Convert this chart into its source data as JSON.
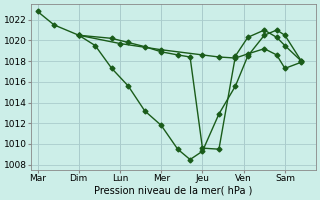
{
  "xlabel": "Pression niveau de la mer( hPa )",
  "background_color": "#cceee8",
  "grid_color": "#aacccc",
  "line_color": "#1a5c1a",
  "marker_color": "#1a5c1a",
  "ylim": [
    1007.5,
    1023.5
  ],
  "yticks": [
    1008,
    1010,
    1012,
    1014,
    1016,
    1018,
    1020,
    1022
  ],
  "days": [
    "Mar",
    "Dim",
    "Lun",
    "Mer",
    "Jeu",
    "Ven",
    "Sam"
  ],
  "day_x": [
    0,
    1,
    2,
    3,
    4,
    5,
    6
  ],
  "series1_x": [
    0.0,
    0.4,
    1.0,
    1.4,
    1.8,
    2.2,
    2.6,
    3.0,
    3.4,
    3.7,
    4.0,
    4.4,
    4.8,
    5.1,
    5.5,
    5.8,
    6.0,
    6.4
  ],
  "series1_y": [
    1022.8,
    1021.5,
    1020.5,
    1019.5,
    1017.3,
    1015.6,
    1013.2,
    1011.8,
    1009.5,
    1008.5,
    1009.3,
    1012.9,
    1015.6,
    1018.5,
    1020.5,
    1021.0,
    1020.5,
    1018.0
  ],
  "series2_x": [
    1.0,
    1.8,
    2.2,
    2.6,
    3.0,
    3.4,
    3.7,
    4.0,
    4.4,
    4.8,
    5.1,
    5.5,
    5.8,
    6.0,
    6.4
  ],
  "series2_y": [
    1020.5,
    1020.2,
    1019.8,
    1019.4,
    1018.9,
    1018.6,
    1018.4,
    1009.6,
    1009.5,
    1018.5,
    1020.3,
    1021.0,
    1020.3,
    1019.5,
    1018.0
  ],
  "series3_x": [
    1.0,
    2.0,
    3.0,
    4.0,
    4.4,
    4.8,
    5.1,
    5.5,
    5.8,
    6.0,
    6.4
  ],
  "series3_y": [
    1020.5,
    1019.7,
    1019.1,
    1018.6,
    1018.4,
    1018.3,
    1018.7,
    1019.2,
    1018.6,
    1017.3,
    1017.9
  ]
}
